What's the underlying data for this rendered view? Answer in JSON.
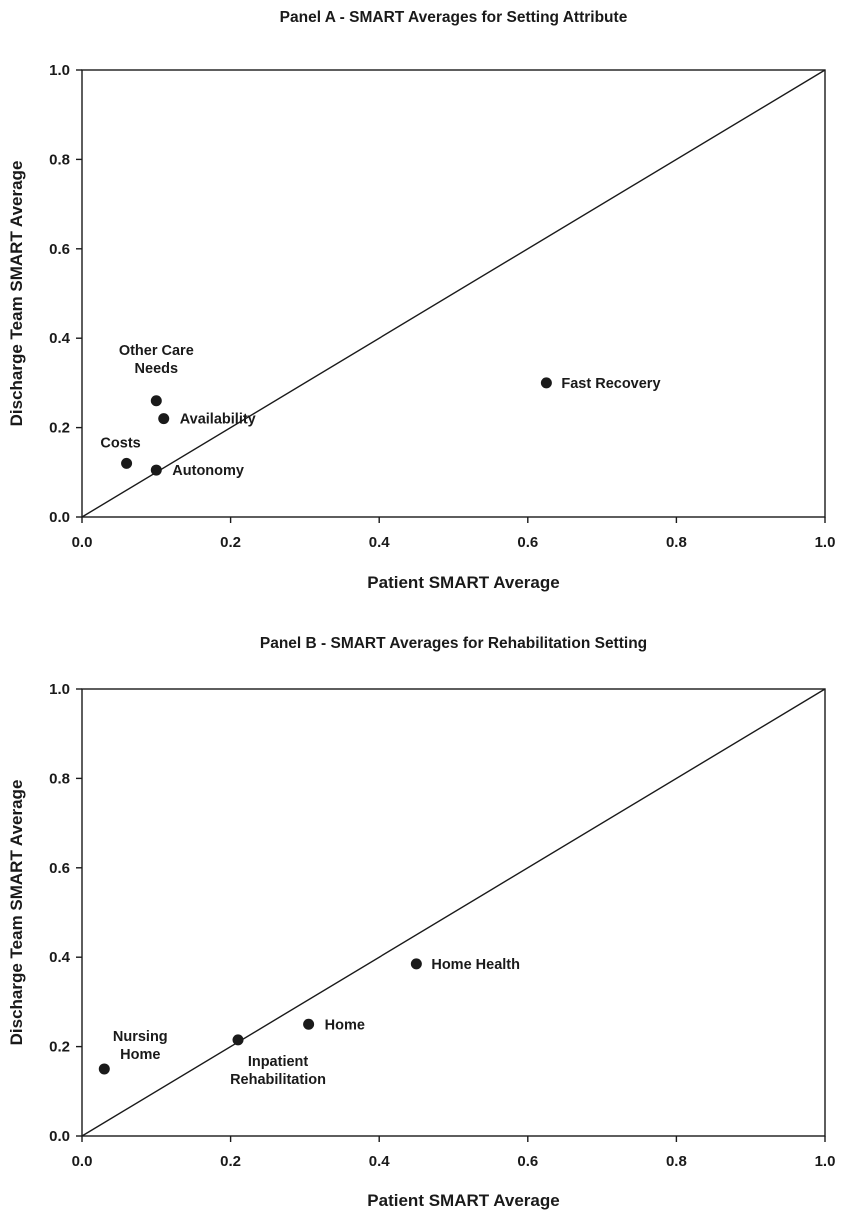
{
  "chart_data": [
    {
      "type": "scatter",
      "title": "Panel A - SMART Averages for Setting Attribute",
      "xlabel": "Patient SMART Average",
      "ylabel": "Discharge Team SMART Average",
      "xlim": [
        0,
        1
      ],
      "ylim": [
        0,
        1
      ],
      "xticks": [
        "0.0",
        "0.2",
        "0.4",
        "0.6",
        "0.8",
        "1.0"
      ],
      "yticks": [
        "0.0",
        "0.2",
        "0.4",
        "0.6",
        "0.8",
        "1.0"
      ],
      "reference_line": "y = x",
      "grid": false,
      "points": [
        {
          "label": [
            "Other Care",
            "Needs"
          ],
          "x": 0.1,
          "y": 0.26
        },
        {
          "label": [
            "Availability"
          ],
          "x": 0.11,
          "y": 0.22
        },
        {
          "label": [
            "Costs"
          ],
          "x": 0.06,
          "y": 0.12
        },
        {
          "label": [
            "Autonomy"
          ],
          "x": 0.1,
          "y": 0.105
        },
        {
          "label": [
            "Fast Recovery"
          ],
          "x": 0.625,
          "y": 0.3
        }
      ]
    },
    {
      "type": "scatter",
      "title": "Panel B - SMART Averages for Rehabilitation Setting",
      "xlabel": "Patient SMART Average",
      "ylabel": "Discharge Team SMART Average",
      "xlim": [
        0,
        1
      ],
      "ylim": [
        0,
        1
      ],
      "xticks": [
        "0.0",
        "0.2",
        "0.4",
        "0.6",
        "0.8",
        "1.0"
      ],
      "yticks": [
        "0.0",
        "0.2",
        "0.4",
        "0.6",
        "0.8",
        "1.0"
      ],
      "reference_line": "y = x",
      "grid": false,
      "points": [
        {
          "label": [
            "Nursing",
            "Home"
          ],
          "x": 0.03,
          "y": 0.15
        },
        {
          "label": [
            "Inpatient",
            "Rehabilitation"
          ],
          "x": 0.21,
          "y": 0.215
        },
        {
          "label": [
            "Home"
          ],
          "x": 0.305,
          "y": 0.25
        },
        {
          "label": [
            "Home Health"
          ],
          "x": 0.45,
          "y": 0.385
        }
      ]
    }
  ]
}
